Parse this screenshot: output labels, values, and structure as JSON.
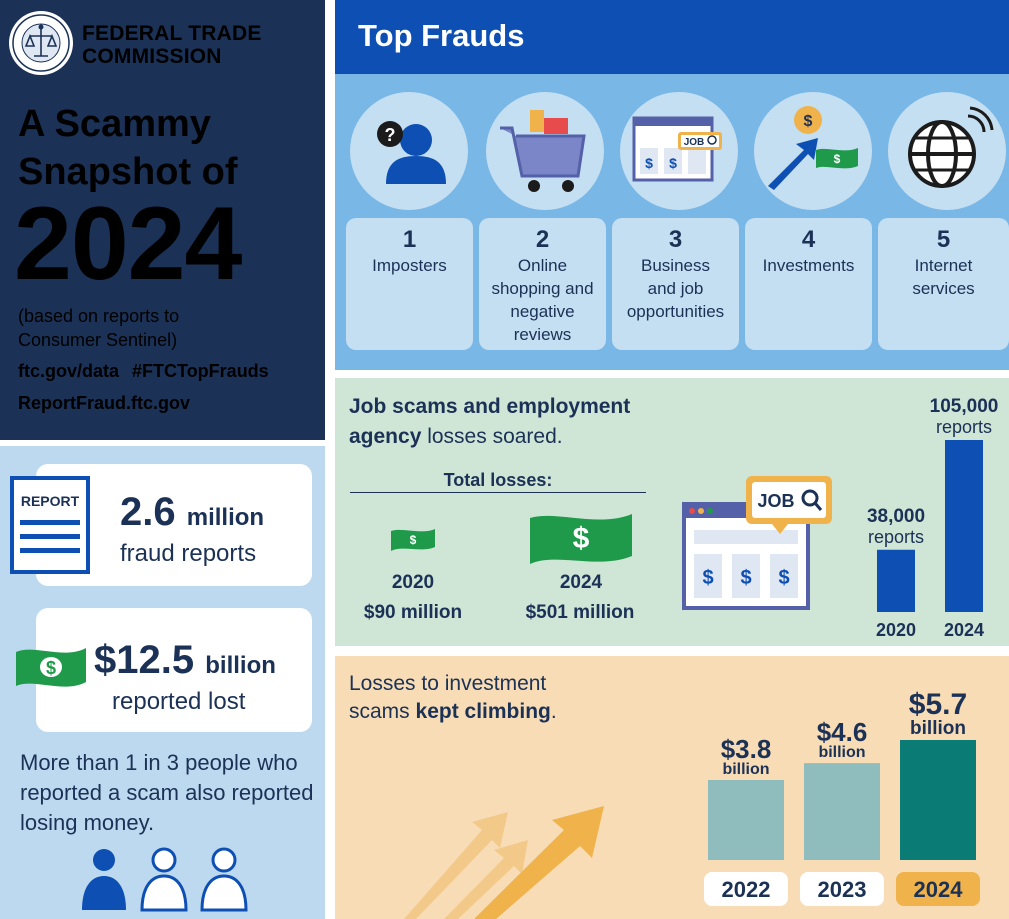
{
  "left": {
    "agency_line1": "FEDERAL TRADE",
    "agency_line2": "COMMISSION",
    "headline_line1": "A Scammy",
    "headline_line2": "Snapshot of",
    "year": "2024",
    "based_line1": "(based on reports to",
    "based_line2": "Consumer Sentinel)",
    "link1": "ftc.gov/data",
    "hashtag": "#FTCTopFrauds",
    "link2": "ReportFraud.ftc.gov"
  },
  "stats": {
    "report_icon_label": "REPORT",
    "fraud_reports_value": "2.6",
    "fraud_reports_unit": "million",
    "fraud_reports_label": "fraud reports",
    "lost_value": "$12.5",
    "lost_unit": "billion",
    "lost_label": "reported lost",
    "money_symbol": "$",
    "more_than": "More than 1 in 3 people who reported a scam also reported losing money.",
    "people_shown": 3,
    "people_filled": 1
  },
  "top_frauds": {
    "title": "Top Frauds",
    "items": [
      {
        "rank": "1",
        "label": "Imposters",
        "icon": "imposter-icon"
      },
      {
        "rank": "2",
        "label": "Online shopping and negative reviews",
        "icon": "shopping-cart-icon"
      },
      {
        "rank": "3",
        "label": "Business and job opportunities",
        "icon": "job-board-icon"
      },
      {
        "rank": "4",
        "label": "Investments",
        "icon": "investment-arrow-icon"
      },
      {
        "rank": "5",
        "label": "Internet services",
        "icon": "globe-icon"
      }
    ],
    "job_tag": "JOB",
    "question_mark": "?",
    "dollar": "$"
  },
  "job_scams": {
    "title_bold1": "Job scams and employment",
    "title_bold2": "agency",
    "title_rest": " losses soared.",
    "total_losses_label": "Total losses:",
    "losses": [
      {
        "year": "2020",
        "amount": "$90 million"
      },
      {
        "year": "2024",
        "amount": "$501 million"
      }
    ],
    "job_tag": "JOB",
    "dollar": "$",
    "chart_data": {
      "type": "bar",
      "categories": [
        "2020",
        "2024"
      ],
      "values": [
        38000,
        105000
      ],
      "value_labels": [
        "38,000",
        "105,000"
      ],
      "unit_label": "reports",
      "ylim": [
        0,
        110000
      ],
      "color": "#0e4fb3"
    }
  },
  "investments": {
    "title_line1": "Losses to investment",
    "title_line2_plain": "scams ",
    "title_line2_bold": "kept climbing",
    "title_line2_end": ".",
    "chart_data": {
      "type": "bar",
      "categories": [
        "2022",
        "2023",
        "2024"
      ],
      "values": [
        3.8,
        4.6,
        5.7
      ],
      "value_labels": [
        "$3.8",
        "$4.6",
        "$5.7"
      ],
      "unit_label": "billion",
      "ylim": [
        0,
        6
      ],
      "colors": [
        "#8fbcbd",
        "#8fbcbd",
        "#0b7b76"
      ],
      "highlight_label_color": "#f0b24a"
    }
  }
}
